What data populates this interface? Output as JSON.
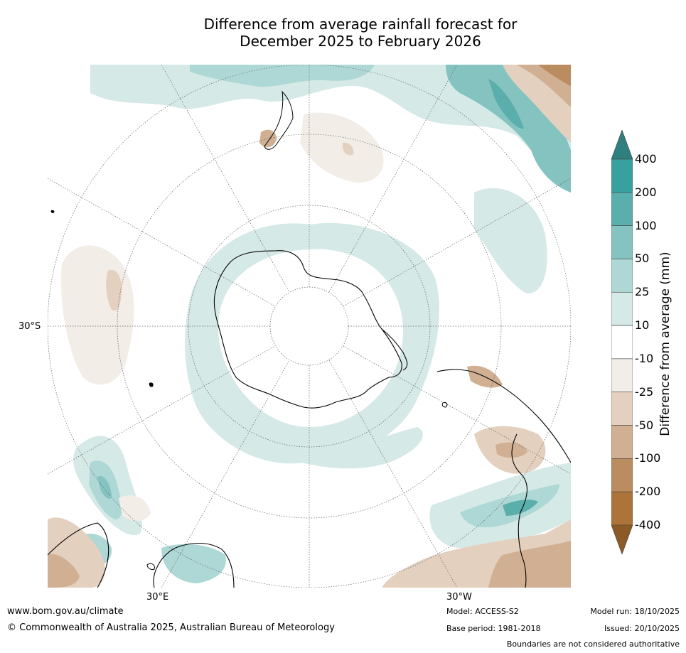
{
  "title_line1": "Difference from average rainfall forecast for",
  "title_line2": "December 2025 to February 2026",
  "map": {
    "projection": "south-polar-stereographic",
    "lat_label": "30°S",
    "lon_labels": {
      "east": "30°E",
      "west": "30°W"
    }
  },
  "colorbar": {
    "title": "Difference from average (mm)",
    "tick_labels": [
      "400",
      "200",
      "100",
      "50",
      "25",
      "10",
      "-10",
      "-25",
      "-50",
      "-100",
      "-200",
      "-400"
    ],
    "colors": [
      "#2e7f7d",
      "#38a19e",
      "#5aaeab",
      "#84c3c0",
      "#aed8d5",
      "#d5e9e7",
      "#ffffff",
      "#f2ede7",
      "#e3d0bf",
      "#d0af92",
      "#bc8c61",
      "#ad7439",
      "#8b5a26"
    ]
  },
  "footer": {
    "url": "www.bom.gov.au/climate",
    "copyright": "© Commonwealth of Australia 2025, Australian Bureau of Meteorology",
    "model": "Model: ACCESS-S2",
    "base_period": "Base period: 1981-2018",
    "model_run": "Model run: 18/10/2025",
    "issued": "Issued: 20/10/2025",
    "disclaimer": "Boundaries are not considered authoritative"
  }
}
